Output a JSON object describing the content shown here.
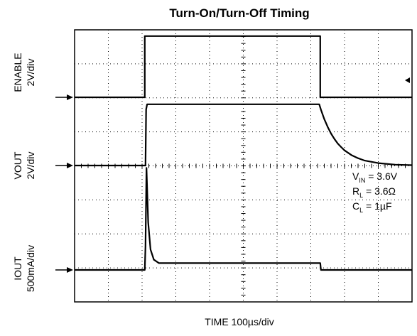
{
  "chart_data": {
    "type": "line",
    "title": "Turn-On/Turn-Off Timing",
    "xlabel": "TIME 100µs/div",
    "x_unit": "µs",
    "xlim": [
      0,
      1000
    ],
    "grid": true,
    "channels": [
      {
        "name": "ENABLE",
        "scale": "2V/div"
      },
      {
        "name": "VOUT",
        "scale": "2V/div"
      },
      {
        "name": "IOUT",
        "scale": "500mA/div"
      }
    ],
    "series": [
      {
        "name": "ENABLE",
        "unit": "V",
        "x": [
          0,
          208,
          208,
          728,
          728,
          1000
        ],
        "y": [
          0,
          0,
          3.6,
          3.6,
          0,
          0
        ]
      },
      {
        "name": "VOUT",
        "unit": "V",
        "x": [
          0,
          210,
          212,
          215,
          725,
          730,
          740,
          750,
          760,
          770,
          780,
          790,
          800,
          820,
          840,
          860,
          900,
          950,
          1000
        ],
        "y": [
          0,
          0,
          3.3,
          3.6,
          3.6,
          3.28,
          2.73,
          2.27,
          1.88,
          1.56,
          1.29,
          1.08,
          0.89,
          0.62,
          0.43,
          0.29,
          0.14,
          0.05,
          0.02
        ]
      },
      {
        "name": "IOUT",
        "unit": "mA",
        "x": [
          0,
          208,
          210,
          213,
          218,
          225,
          235,
          250,
          728,
          730,
          1000
        ],
        "y": [
          0,
          0,
          350,
          1500,
          700,
          300,
          150,
          100,
          100,
          0,
          0
        ]
      }
    ],
    "annotations": [
      {
        "main": "V",
        "sub": "IN",
        "rest": " = 3.6V"
      },
      {
        "main": "R",
        "sub": "L",
        "rest": " = 3.6Ω"
      },
      {
        "main": "C",
        "sub": "L",
        "rest": " = 1µF"
      }
    ]
  }
}
